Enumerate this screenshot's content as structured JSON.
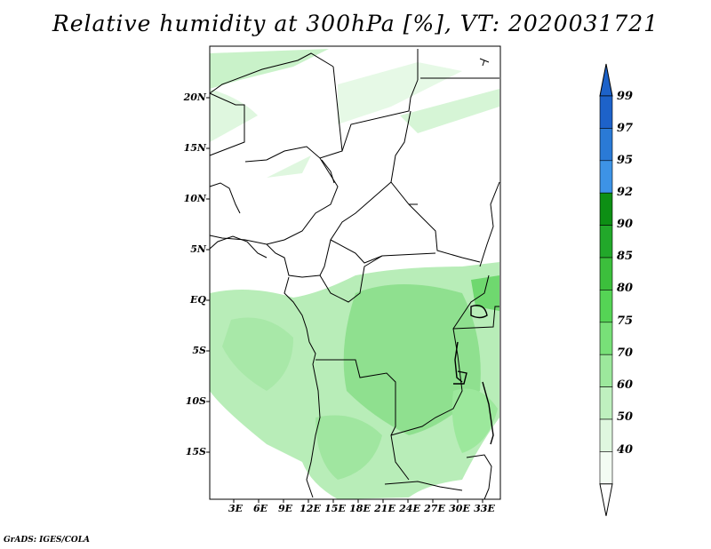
{
  "title": "Relative humidity at 300hPa [%], VT: 2020031721",
  "credit": "GrADS: IGES/COLA",
  "map": {
    "lat_labels": [
      "20N",
      "15N",
      "10N",
      "5N",
      "EQ",
      "5S",
      "10S",
      "15S"
    ],
    "lon_labels": [
      "3E",
      "6E",
      "9E",
      "12E",
      "15E",
      "18E",
      "21E",
      "24E",
      "27E",
      "30E",
      "33E"
    ]
  },
  "colorbar": {
    "levels": [
      "99",
      "97",
      "95",
      "92",
      "90",
      "85",
      "80",
      "75",
      "70",
      "60",
      "50",
      "40"
    ],
    "colors": [
      "#1d62c9",
      "#2a7ad6",
      "#3d93e6",
      "#0d8f14",
      "#22a82a",
      "#3cbf3c",
      "#55d455",
      "#78e078",
      "#9ce89c",
      "#bff0bf",
      "#dff7df",
      "#f3fcf3"
    ],
    "top_arrow_color": "#1d62c9",
    "bottom_arrow_color": "#ffffff"
  }
}
